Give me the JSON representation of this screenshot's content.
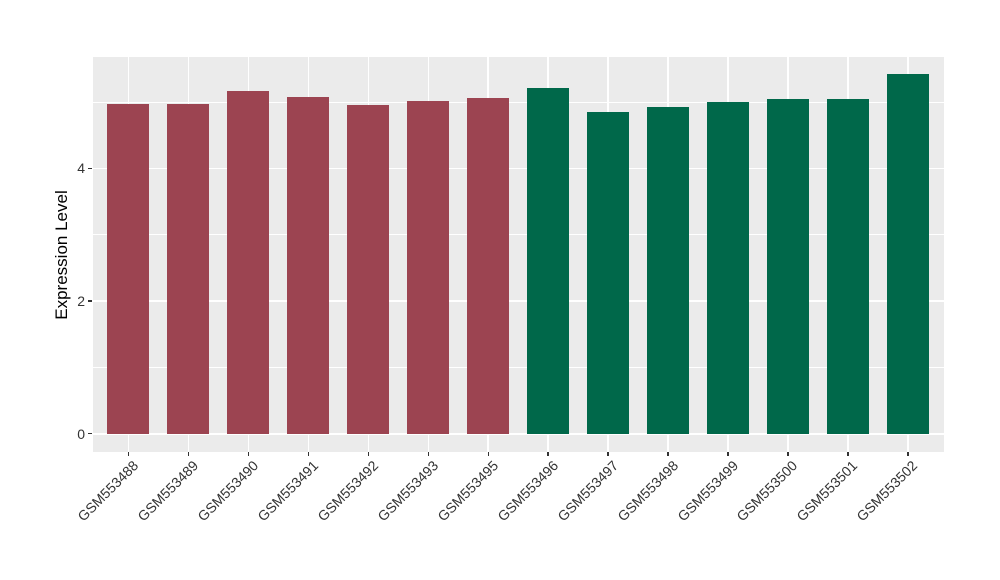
{
  "chart_data": {
    "type": "bar",
    "title": "",
    "xlabel": "",
    "ylabel": "Expression Level",
    "categories": [
      "GSM553488",
      "GSM553489",
      "GSM553490",
      "GSM553491",
      "GSM553492",
      "GSM553493",
      "GSM553495",
      "GSM553496",
      "GSM553497",
      "GSM553498",
      "GSM553499",
      "GSM553500",
      "GSM553501",
      "GSM553502"
    ],
    "values": [
      4.97,
      4.97,
      5.17,
      5.08,
      4.95,
      5.01,
      5.06,
      5.22,
      4.85,
      4.93,
      5.0,
      5.04,
      5.04,
      5.42
    ],
    "bar_groups": [
      "group1",
      "group1",
      "group1",
      "group1",
      "group1",
      "group1",
      "group1",
      "group2",
      "group2",
      "group2",
      "group2",
      "group2",
      "group2",
      "group2"
    ],
    "group_colors": {
      "group1": "#9C4451",
      "group2": "#00684A"
    },
    "y_ticks": [
      "0",
      "2",
      "4"
    ],
    "y_tick_values": [
      0,
      2,
      4
    ],
    "y_minor_values": [
      1,
      3,
      5
    ],
    "ylim": [
      -0.28,
      5.68
    ],
    "x_tick_angle": -45,
    "grid": true,
    "legend": "none",
    "panel_background": "#EBEBEB",
    "grid_color": "#FFFFFF",
    "axis_text_color": "#333333",
    "axis_title_color": "#000000"
  }
}
